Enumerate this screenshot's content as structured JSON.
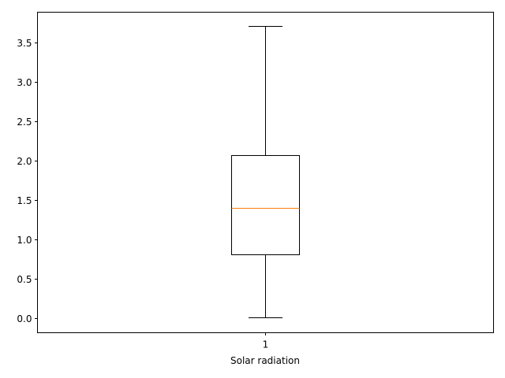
{
  "chart_data": {
    "type": "boxplot",
    "title": "",
    "xlabel": "Solar radiation",
    "ylabel": "",
    "categories": [
      "1"
    ],
    "boxes": [
      {
        "label": "1",
        "whisker_low": 0.01,
        "q1": 0.81,
        "median": 1.4,
        "q3": 2.07,
        "whisker_high": 3.71
      }
    ],
    "ylim": [
      -0.18,
      3.89
    ],
    "yticks": [
      0.0,
      0.5,
      1.0,
      1.5,
      2.0,
      2.5,
      3.0,
      3.5
    ],
    "ytick_labels": [
      "0.0",
      "0.5",
      "1.0",
      "1.5",
      "2.0",
      "2.5",
      "3.0",
      "3.5"
    ],
    "grid": false,
    "legend": "none",
    "colors": {
      "box": "#000000",
      "median": "#ff7f0e",
      "whisker": "#000000",
      "axes": "#000000"
    }
  }
}
